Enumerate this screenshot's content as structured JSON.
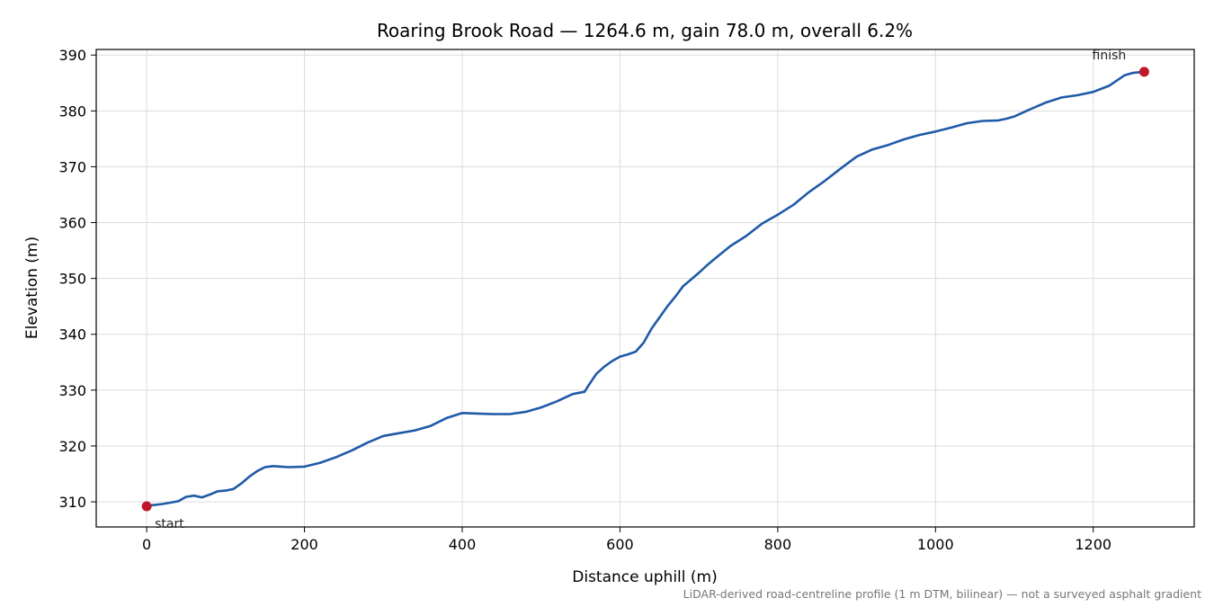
{
  "chart_data": {
    "type": "line",
    "title": "Roaring Brook Road — 1264.6 m, gain 78.0 m, overall 6.2%",
    "xlabel": "Distance uphill (m)",
    "ylabel": "Elevation (m)",
    "xlim": [
      -64,
      1328
    ],
    "ylim": [
      305.5,
      391
    ],
    "x_ticks": [
      0,
      200,
      400,
      600,
      800,
      1000,
      1200
    ],
    "y_ticks": [
      310,
      320,
      330,
      340,
      350,
      360,
      370,
      380,
      390
    ],
    "grid": true,
    "line_color": "#1f5aa8",
    "marker_color": "#c0182a",
    "series": [
      {
        "x": [
          0,
          20,
          40,
          50,
          60,
          70,
          80,
          90,
          100,
          110,
          120,
          130,
          140,
          150,
          160,
          170,
          180,
          200,
          220,
          240,
          260,
          280,
          300,
          320,
          340,
          360,
          380,
          400,
          420,
          440,
          460,
          480,
          500,
          520,
          540,
          555,
          560,
          570,
          580,
          590,
          600,
          610,
          620,
          630,
          640,
          650,
          660,
          670,
          680,
          690,
          700,
          710,
          720,
          740,
          760,
          780,
          800,
          820,
          840,
          860,
          880,
          900,
          920,
          940,
          960,
          980,
          1000,
          1020,
          1040,
          1060,
          1080,
          1090,
          1100,
          1120,
          1140,
          1160,
          1180,
          1200,
          1220,
          1240,
          1250,
          1264.6
        ],
        "y": [
          309.3,
          309.6,
          310.1,
          310.9,
          311.1,
          310.8,
          311.3,
          311.9,
          312.0,
          312.3,
          313.3,
          314.5,
          315.5,
          316.2,
          316.4,
          316.3,
          316.2,
          316.3,
          317.0,
          318.0,
          319.2,
          320.6,
          321.8,
          322.3,
          322.8,
          323.6,
          325.0,
          325.9,
          325.8,
          325.7,
          325.7,
          326.1,
          326.9,
          328.0,
          329.3,
          329.7,
          330.8,
          332.9,
          334.2,
          335.2,
          336.0,
          336.4,
          336.9,
          338.5,
          341.0,
          343.0,
          345.0,
          346.7,
          348.6,
          349.8,
          351.0,
          352.3,
          353.5,
          355.8,
          357.6,
          359.8,
          361.4,
          363.2,
          365.5,
          367.5,
          369.7,
          371.8,
          373.1,
          373.9,
          374.9,
          375.7,
          376.3,
          377.0,
          377.8,
          378.2,
          378.3,
          378.6,
          379.0,
          380.3,
          381.5,
          382.4,
          382.8,
          383.4,
          384.5,
          386.4,
          386.8,
          387.0
        ]
      }
    ],
    "annotations": {
      "start": {
        "label": "start",
        "x": 0,
        "y": 309.2
      },
      "finish": {
        "label": "finish",
        "x": 1264.6,
        "y": 387.0
      }
    },
    "footnote": "LiDAR-derived road-centreline profile (1 m DTM, bilinear) — not a surveyed asphalt gradient"
  }
}
